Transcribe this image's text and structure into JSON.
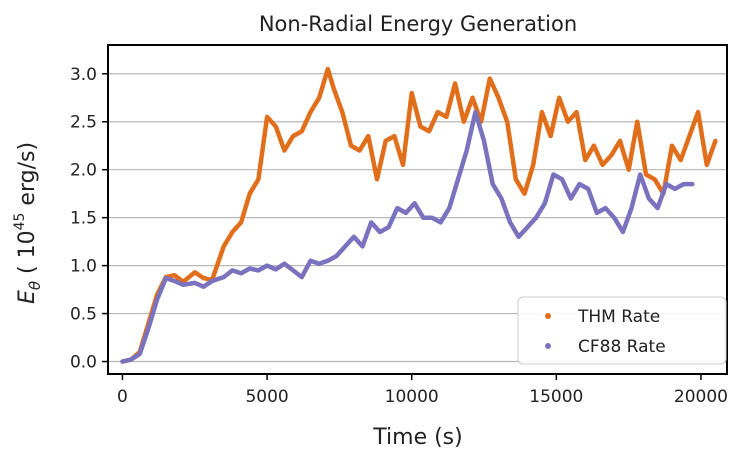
{
  "chart_data": {
    "type": "line",
    "title": "Non-Radial Energy Generation",
    "xlabel": "Time (s)",
    "ylabel": {
      "symbol": "E",
      "subscript": "θ",
      "open": " ( ",
      "mantissa": "10",
      "exponent": "45",
      "unit": " erg/s)"
    },
    "xlim": [
      -500,
      20900
    ],
    "ylim": [
      -0.13,
      3.3
    ],
    "xticks": [
      0,
      5000,
      10000,
      15000,
      20000
    ],
    "xtick_labels": [
      "0",
      "5000",
      "10000",
      "15000",
      "20000"
    ],
    "yticks": [
      0.0,
      0.5,
      1.0,
      1.5,
      2.0,
      2.5,
      3.0
    ],
    "ytick_labels": [
      "0.0",
      "0.5",
      "1.0",
      "1.5",
      "2.0",
      "2.5",
      "3.0"
    ],
    "grid": "horizontal",
    "legend_position": "lower-right",
    "series": [
      {
        "name": "THM Rate",
        "color": "#e06e1a",
        "x": [
          0,
          300,
          600,
          900,
          1200,
          1500,
          1800,
          2100,
          2500,
          2800,
          3100,
          3500,
          3800,
          4100,
          4400,
          4700,
          5000,
          5300,
          5600,
          5900,
          6200,
          6500,
          6800,
          7100,
          7300,
          7600,
          7900,
          8200,
          8500,
          8800,
          9100,
          9400,
          9700,
          10000,
          10300,
          10600,
          10900,
          11200,
          11500,
          11800,
          12100,
          12400,
          12700,
          13000,
          13300,
          13600,
          13900,
          14200,
          14500,
          14800,
          15100,
          15400,
          15700,
          16000,
          16300,
          16600,
          16900,
          17200,
          17500,
          17800,
          18100,
          18400,
          18700,
          19000,
          19300,
          19600,
          19900,
          20200,
          20500
        ],
        "values": [
          0.0,
          0.02,
          0.1,
          0.4,
          0.7,
          0.88,
          0.9,
          0.83,
          0.93,
          0.87,
          0.85,
          1.2,
          1.35,
          1.45,
          1.75,
          1.9,
          2.55,
          2.45,
          2.2,
          2.35,
          2.4,
          2.6,
          2.75,
          3.05,
          2.85,
          2.6,
          2.25,
          2.2,
          2.35,
          1.9,
          2.3,
          2.35,
          2.05,
          2.8,
          2.45,
          2.4,
          2.6,
          2.55,
          2.9,
          2.5,
          2.75,
          2.5,
          2.95,
          2.75,
          2.5,
          1.9,
          1.75,
          2.05,
          2.6,
          2.35,
          2.75,
          2.5,
          2.6,
          2.1,
          2.25,
          2.05,
          2.15,
          2.3,
          2.0,
          2.5,
          1.95,
          1.9,
          1.75,
          2.25,
          2.1,
          2.35,
          2.6,
          2.05,
          2.3
        ]
      },
      {
        "name": "CF88 Rate",
        "color": "#7b72bf",
        "x": [
          0,
          300,
          600,
          900,
          1200,
          1500,
          1800,
          2100,
          2500,
          2800,
          3100,
          3500,
          3800,
          4100,
          4400,
          4700,
          5000,
          5300,
          5600,
          5900,
          6200,
          6500,
          6800,
          7100,
          7400,
          7700,
          8000,
          8300,
          8600,
          8900,
          9200,
          9500,
          9800,
          10100,
          10400,
          10700,
          11000,
          11300,
          11600,
          11900,
          12200,
          12500,
          12800,
          13100,
          13400,
          13700,
          14000,
          14300,
          14600,
          14900,
          15200,
          15500,
          15800,
          16100,
          16400,
          16700,
          17000,
          17300,
          17600,
          17900,
          18200,
          18500,
          18800,
          19100,
          19400,
          19700
        ],
        "values": [
          0.0,
          0.02,
          0.08,
          0.35,
          0.65,
          0.87,
          0.84,
          0.8,
          0.82,
          0.78,
          0.84,
          0.88,
          0.95,
          0.92,
          0.97,
          0.95,
          1.0,
          0.96,
          1.02,
          0.95,
          0.88,
          1.05,
          1.02,
          1.05,
          1.1,
          1.2,
          1.3,
          1.2,
          1.45,
          1.35,
          1.4,
          1.6,
          1.55,
          1.65,
          1.5,
          1.5,
          1.45,
          1.6,
          1.9,
          2.2,
          2.6,
          2.3,
          1.85,
          1.7,
          1.45,
          1.3,
          1.4,
          1.5,
          1.65,
          1.95,
          1.9,
          1.7,
          1.85,
          1.8,
          1.55,
          1.6,
          1.5,
          1.35,
          1.6,
          1.95,
          1.7,
          1.6,
          1.85,
          1.8,
          1.85,
          1.85
        ]
      }
    ]
  }
}
